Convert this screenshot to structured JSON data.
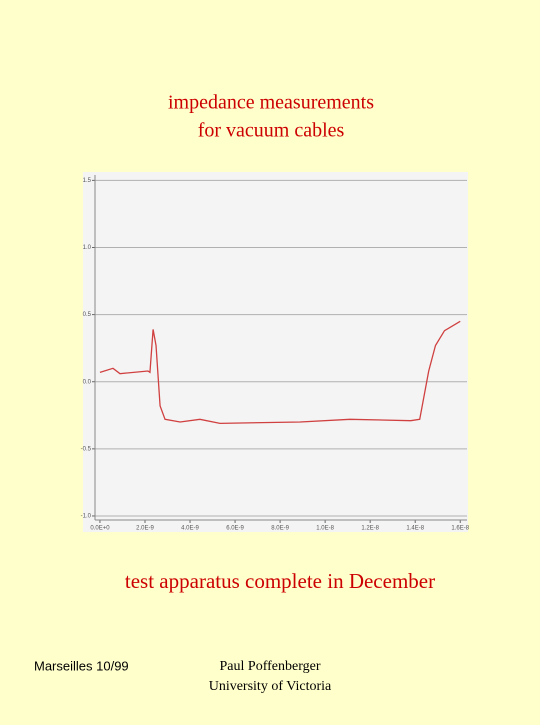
{
  "slide": {
    "title_lines": [
      "impedance measurements",
      "for vacuum cables"
    ],
    "caption": "test apparatus complete in December",
    "footer_left": "Marseilles 10/99",
    "footer_right": [
      "Paul Poffenberger",
      "University of Victoria"
    ]
  },
  "chart_data": {
    "type": "line",
    "x": [
      0,
      5.8e-10,
      8.9e-10,
      2.13e-09,
      2.22e-09,
      2.36e-09,
      2.49e-09,
      2.67e-09,
      2.89e-09,
      3.56e-09,
      4.44e-09,
      5.33e-09,
      8.89e-09,
      1.11e-08,
      1.38e-08,
      1.42e-08,
      1.46e-08,
      1.49e-08,
      1.53e-08,
      1.6e-08
    ],
    "series": [
      {
        "color": "#d04040",
        "values": [
          0.07,
          0.1,
          0.06,
          0.08,
          0.07,
          0.39,
          0.27,
          -0.18,
          -0.28,
          -0.3,
          -0.28,
          -0.31,
          -0.3,
          -0.28,
          -0.29,
          -0.28,
          0.08,
          0.27,
          0.38,
          0.45
        ]
      }
    ],
    "xlim": [
      -2.2e-10,
      1.63e-08
    ],
    "ylim": [
      -1.03,
      1.54
    ],
    "xticks": [
      {
        "value": 0,
        "label": "0.0E+0"
      },
      {
        "value": 2e-09,
        "label": "2.0E-9"
      },
      {
        "value": 4e-09,
        "label": "4.0E-9"
      },
      {
        "value": 6e-09,
        "label": "6.0E-9"
      },
      {
        "value": 8e-09,
        "label": "8.0E-9"
      },
      {
        "value": 1e-08,
        "label": "1.0E-8"
      },
      {
        "value": 1.2e-08,
        "label": "1.2E-8"
      },
      {
        "value": 1.4e-08,
        "label": "1.4E-8"
      },
      {
        "value": 1.6e-08,
        "label": "1.6E-8"
      }
    ],
    "yticks": [
      1.5,
      {
        "value": 1,
        "label": "1.0"
      },
      0.5,
      {
        "value": 0,
        "label": "0.0"
      },
      -0.5,
      {
        "value": -1,
        "label": "-1.0"
      }
    ],
    "grid": true
  }
}
